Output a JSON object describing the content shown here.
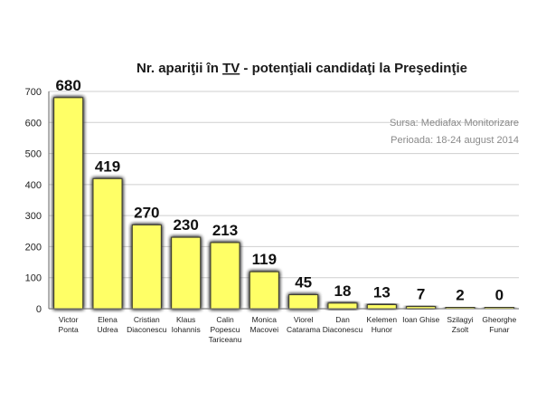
{
  "chart_data": {
    "type": "bar",
    "title_parts": [
      "Nr. apariţii în ",
      "TV",
      " - potenţiali candidaţi la Preşedinţie"
    ],
    "categories": [
      [
        "Victor",
        "Ponta"
      ],
      [
        "Elena",
        "Udrea"
      ],
      [
        "Cristian",
        "Diaconescu"
      ],
      [
        "Klaus",
        "Iohannis"
      ],
      [
        "Calin",
        "Popescu",
        "Tariceanu"
      ],
      [
        "Monica",
        "Macovei"
      ],
      [
        "Viorel",
        "Catarama"
      ],
      [
        "Dan",
        "Diaconescu"
      ],
      [
        "Kelemen",
        "Hunor"
      ],
      [
        "Ioan Ghise"
      ],
      [
        "Szilagyi",
        "Zsolt"
      ],
      [
        "Gheorghe",
        "Funar"
      ]
    ],
    "values": [
      680,
      419,
      270,
      230,
      213,
      119,
      45,
      18,
      13,
      7,
      2,
      0
    ],
    "ylim": [
      0,
      700
    ],
    "yticks": [
      0,
      100,
      200,
      300,
      400,
      500,
      600,
      700
    ],
    "grid": true,
    "source_lines": [
      "Sursa: Mediafax Monitorizare",
      "Perioada: 18-24 august 2014"
    ],
    "colors": {
      "bar_fill": "#ffff66",
      "bar_glow": "#2a2a2a",
      "grid": "#cfcfcf",
      "axis": "#666666"
    }
  }
}
